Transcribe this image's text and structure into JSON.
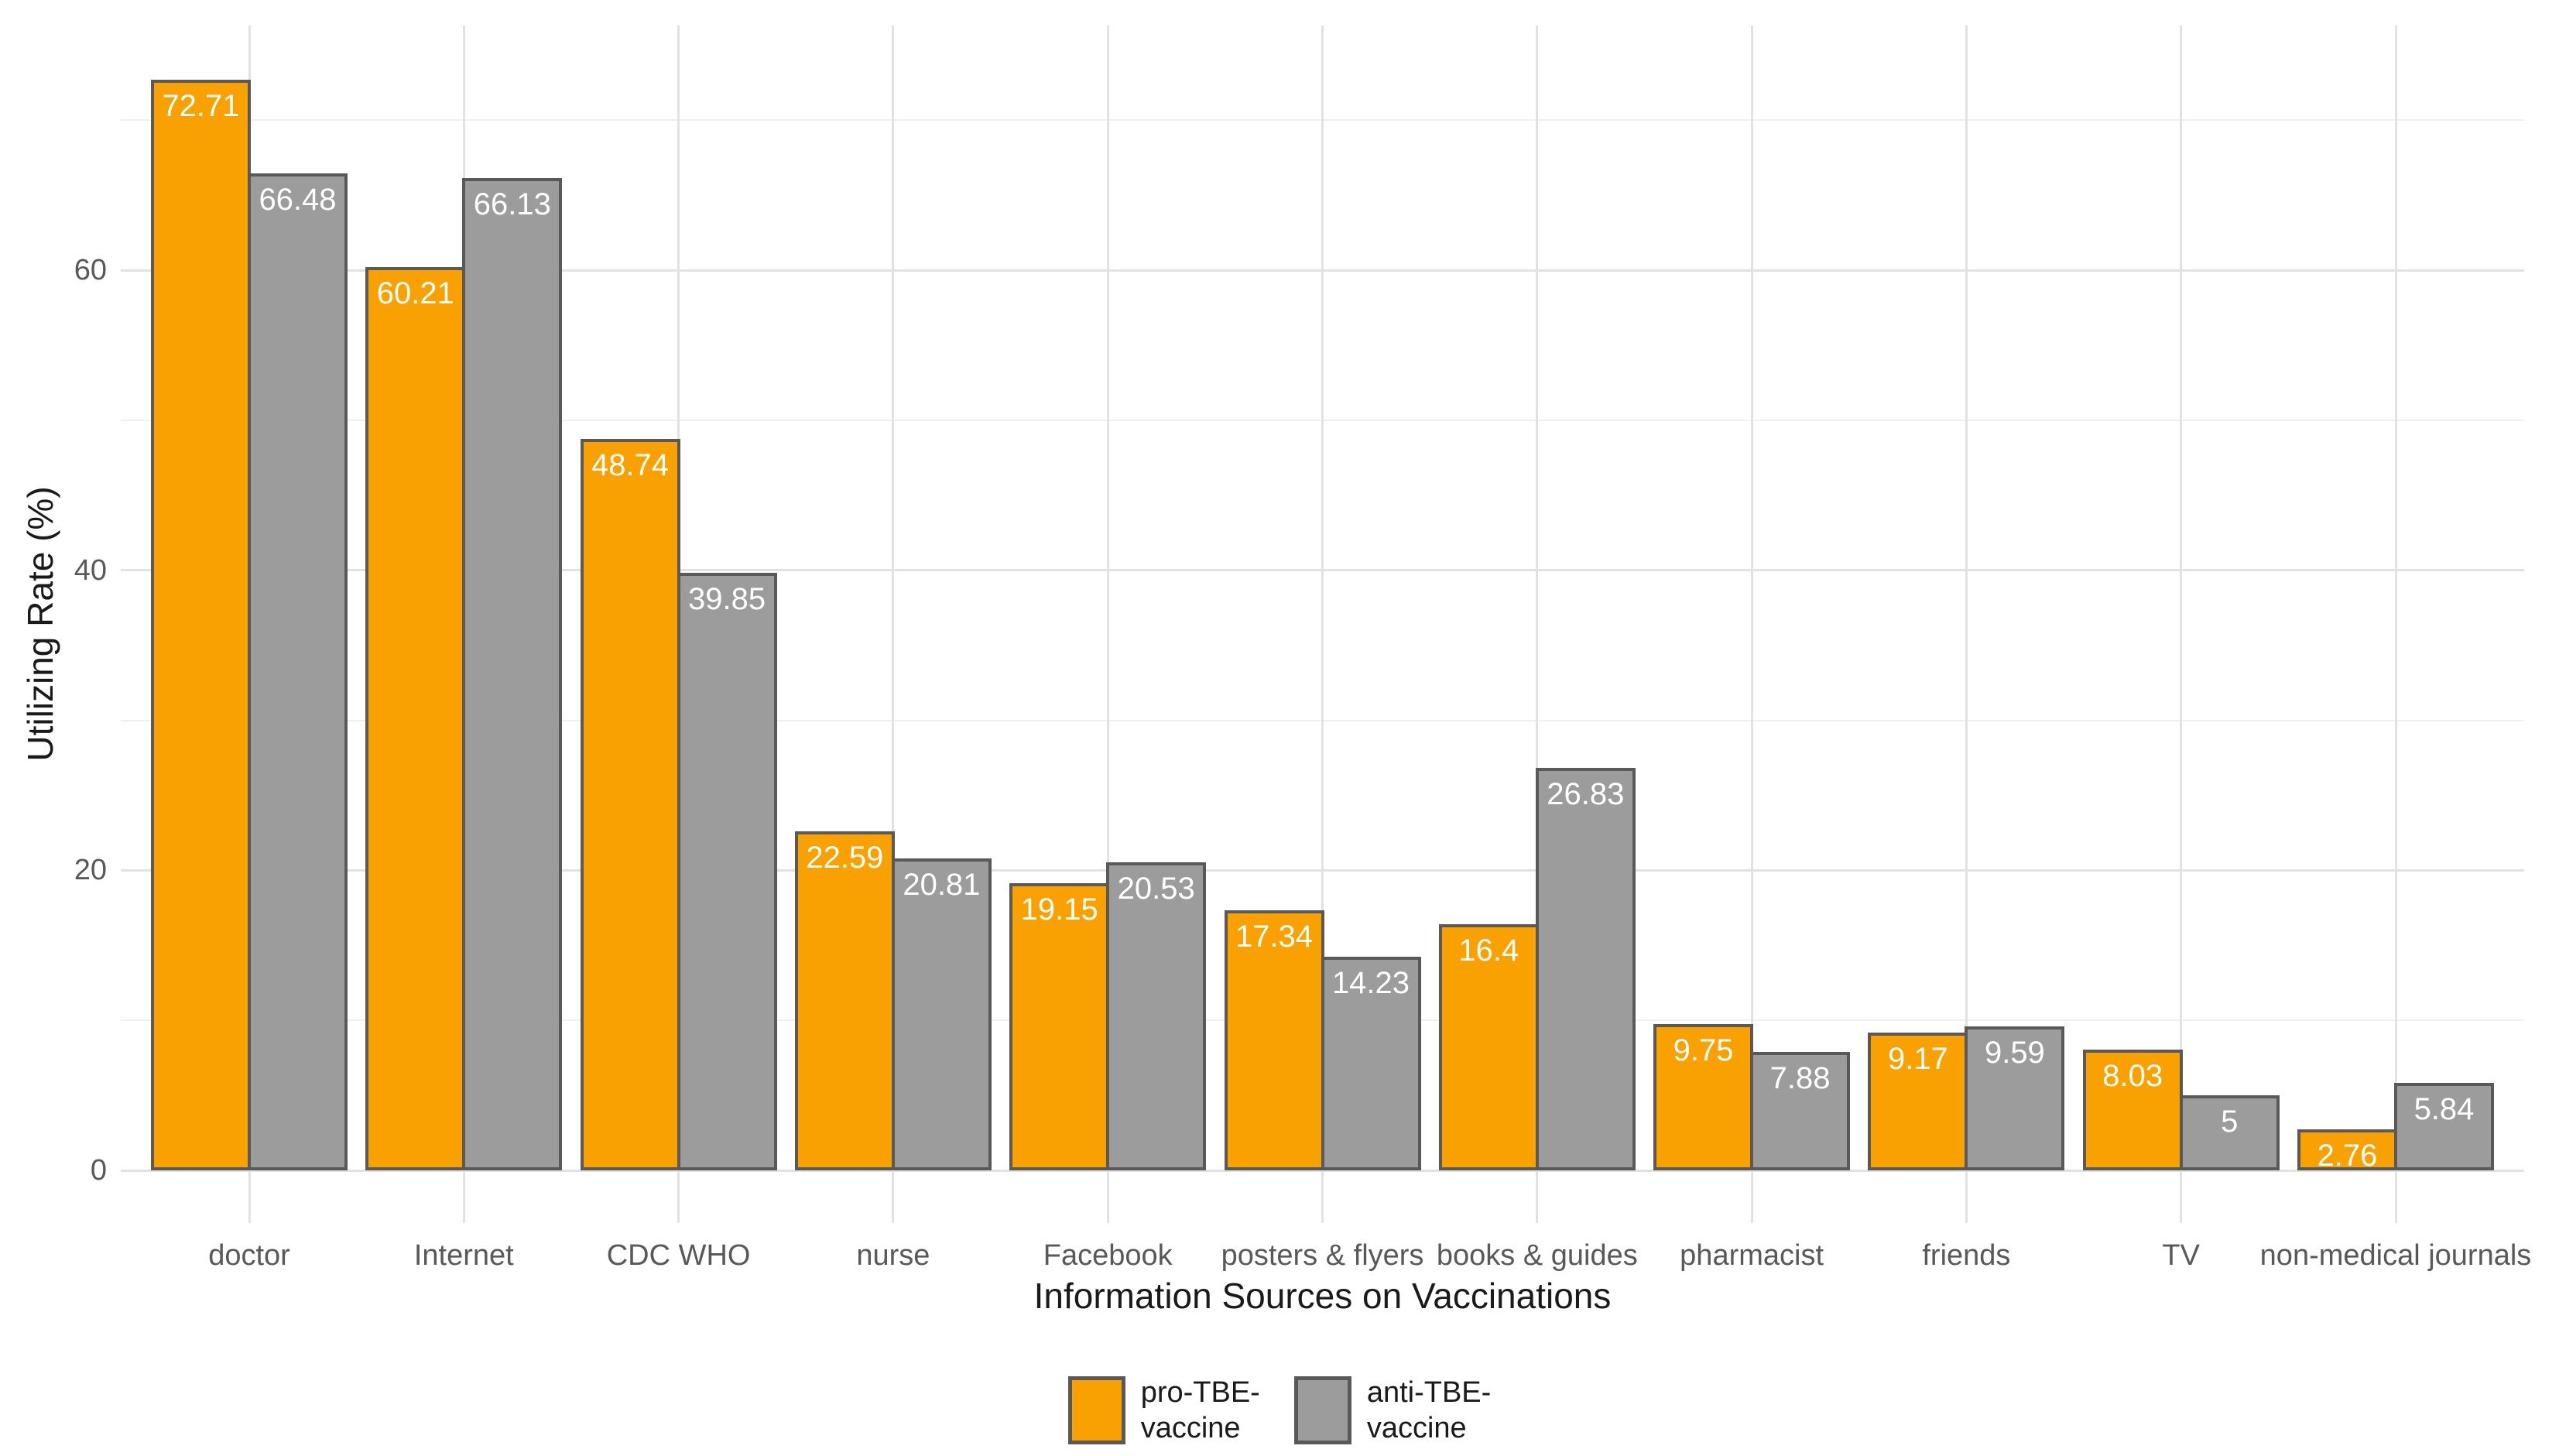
{
  "chart_data": {
    "type": "bar",
    "title": "",
    "xlabel": "Information Sources on Vaccinations",
    "ylabel": "Utilizing Rate (%)",
    "categories": [
      "doctor",
      "Internet",
      "CDC WHO",
      "nurse",
      "Facebook",
      "posters & flyers",
      "books & guides",
      "pharmacist",
      "friends",
      "TV",
      "non-medical journals"
    ],
    "series": [
      {
        "name": "pro-TBE-vaccine",
        "legend_label": "pro-TBE-\nvaccine",
        "color": "#F9A100",
        "values": [
          72.71,
          60.21,
          48.74,
          22.59,
          19.15,
          17.34,
          16.4,
          9.75,
          9.17,
          8.03,
          2.76
        ]
      },
      {
        "name": "anti-TBE-vaccine",
        "legend_label": "anti-TBE-\nvaccine",
        "color": "#9C9C9C",
        "values": [
          66.48,
          66.13,
          39.85,
          20.81,
          20.53,
          14.23,
          26.83,
          7.88,
          9.59,
          5,
          5.84
        ]
      }
    ],
    "bar_border_color": "#595959",
    "bar_label_color": "#FFFFFF",
    "yticks": [
      0,
      20,
      40,
      60
    ],
    "yticks_minor": [
      10,
      30,
      50,
      70
    ],
    "ylim": [
      -3.5,
      76.4
    ],
    "grid": {
      "major_color": "#E2E2E2",
      "minor_color": "#F0F0F0",
      "show": true
    },
    "legend_position": "bottom",
    "axis_text_color": "#595959",
    "axis_title_color": "#1A1A1A",
    "background": "#FFFFFF"
  }
}
